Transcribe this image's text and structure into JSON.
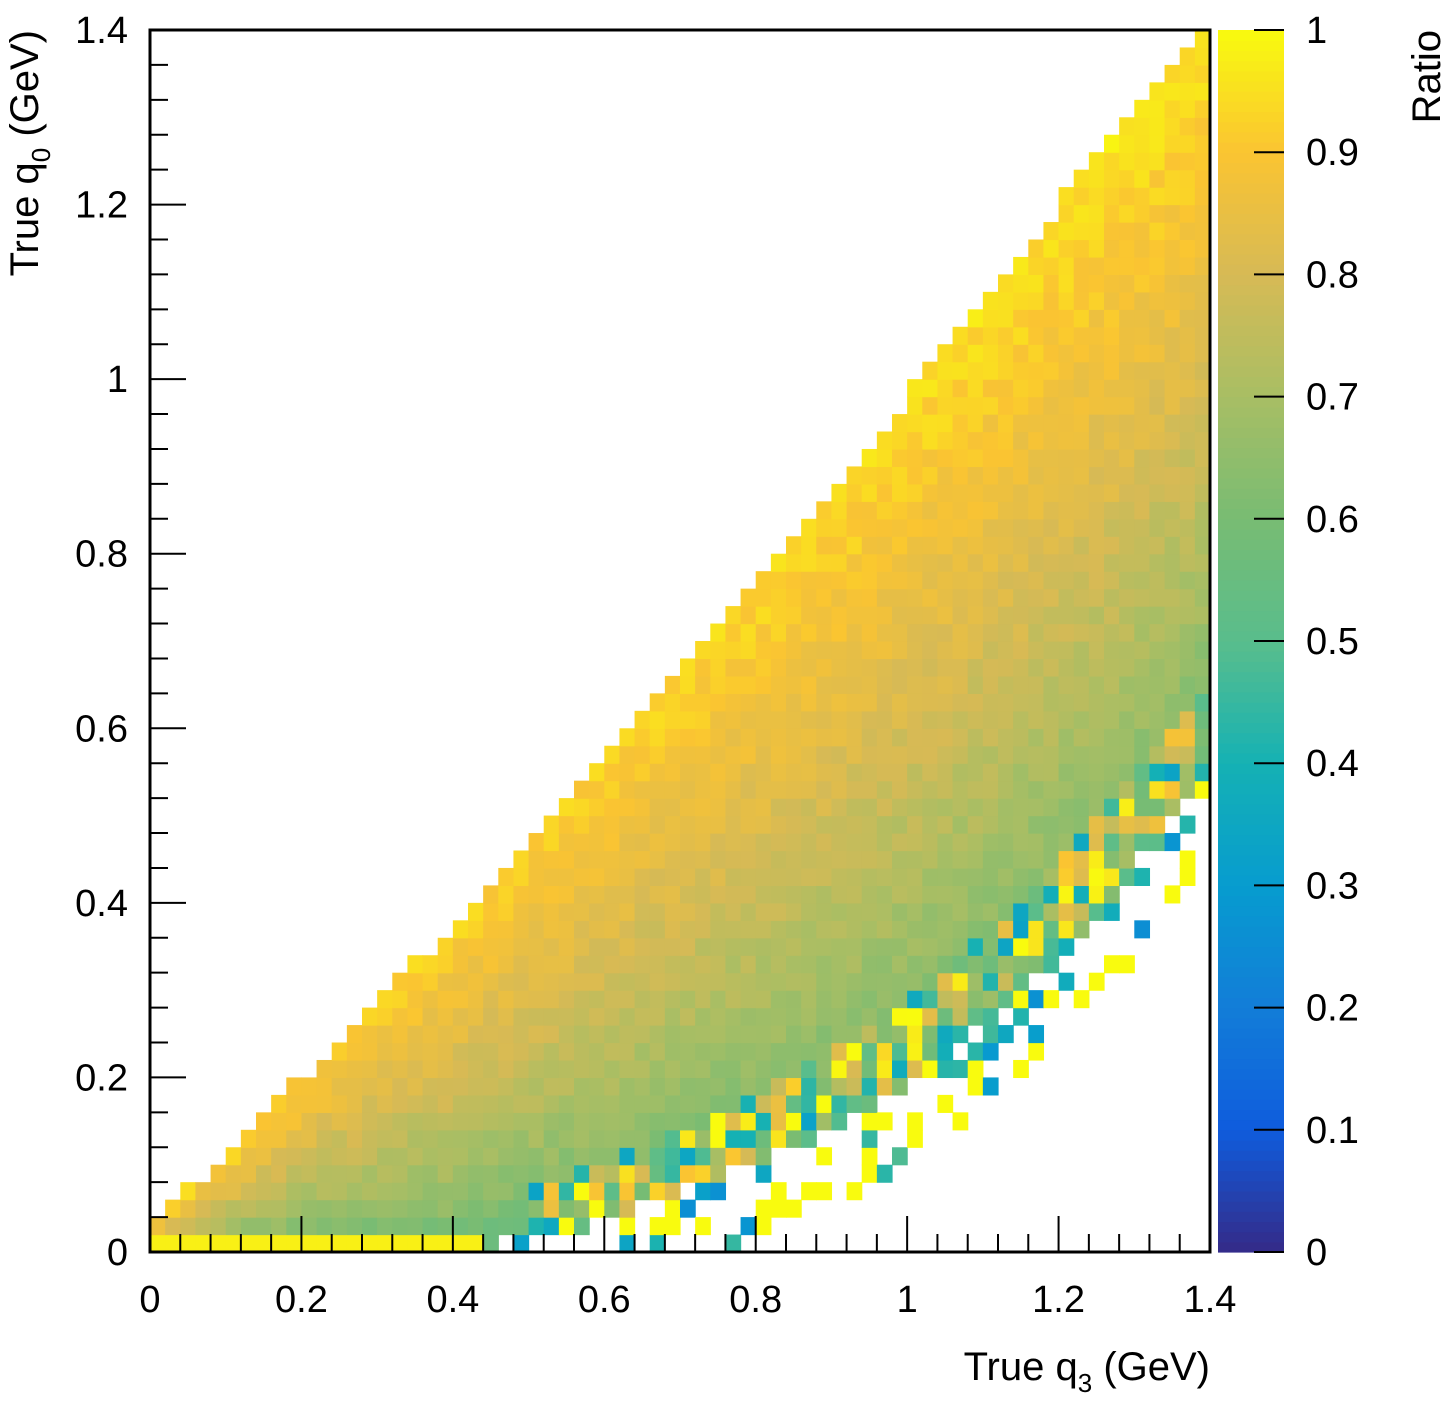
{
  "chart_data": {
    "type": "heatmap",
    "title": "",
    "xlabel": {
      "prefix": "True q",
      "sub": "3",
      "suffix": " (GeV)"
    },
    "ylabel": {
      "prefix": "True q",
      "sub": "0",
      "suffix": " (GeV)"
    },
    "colorbar_label": "Ratio",
    "xlim": [
      0,
      1.4
    ],
    "ylim": [
      0,
      1.4
    ],
    "zlim": [
      0,
      1
    ],
    "x_ticks": [
      "0",
      "0.2",
      "0.4",
      "0.6",
      "0.8",
      "1",
      "1.2",
      "1.4"
    ],
    "y_ticks": [
      "0",
      "0.2",
      "0.4",
      "0.6",
      "0.8",
      "1",
      "1.2",
      "1.4"
    ],
    "z_ticks": [
      "0",
      "0.1",
      "0.2",
      "0.3",
      "0.4",
      "0.5",
      "0.6",
      "0.7",
      "0.8",
      "0.9",
      "1"
    ],
    "bins": {
      "nx": 70,
      "ny": 70
    },
    "colormap": "parula",
    "upper_boundary_samples": {
      "x": [
        0.0,
        0.1,
        0.2,
        0.3,
        0.4,
        0.5,
        0.6,
        0.7,
        0.8,
        0.9,
        1.0,
        1.1,
        1.2,
        1.3,
        1.4
      ],
      "q0_max": [
        0.03,
        0.1,
        0.19,
        0.28,
        0.36,
        0.46,
        0.56,
        0.66,
        0.76,
        0.86,
        0.97,
        1.08,
        1.19,
        1.29,
        1.4
      ]
    },
    "lower_boundary_samples": {
      "x": [
        0.0,
        0.2,
        0.4,
        0.5,
        0.6,
        0.7,
        0.8,
        0.9,
        1.0,
        1.1,
        1.2,
        1.3,
        1.4
      ],
      "q0_min": [
        0.0,
        0.0,
        0.0,
        0.02,
        0.04,
        0.07,
        0.1,
        0.14,
        0.19,
        0.26,
        0.34,
        0.44,
        0.56
      ]
    },
    "ratio_description_samples": [
      {
        "x": 0.1,
        "y": 0.05,
        "ratio": 0.9
      },
      {
        "x": 0.3,
        "y": 0.2,
        "ratio": 0.8
      },
      {
        "x": 0.6,
        "y": 0.3,
        "ratio": 0.8
      },
      {
        "x": 0.9,
        "y": 0.25,
        "ratio": 0.62
      },
      {
        "x": 1.0,
        "y": 0.9,
        "ratio": 0.95
      },
      {
        "x": 1.2,
        "y": 0.5,
        "ratio": 0.6
      },
      {
        "x": 1.35,
        "y": 1.3,
        "ratio": 0.98
      }
    ]
  }
}
